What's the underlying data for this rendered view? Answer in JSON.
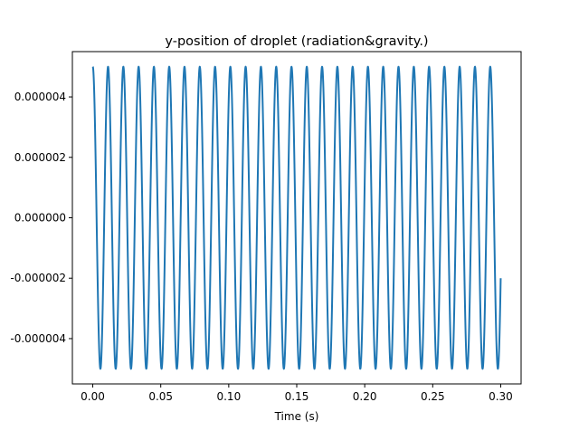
{
  "chart_data": {
    "type": "line",
    "title": "y-position of droplet (radiation&gravity.)",
    "xlabel": "Time (s)",
    "ylabel": "",
    "xlim": [
      -0.015,
      0.315
    ],
    "ylim": [
      -5.5e-06,
      5.5e-06
    ],
    "xticks": [
      0.0,
      0.05,
      0.1,
      0.15,
      0.2,
      0.25,
      0.3
    ],
    "xtick_labels": [
      "0.00",
      "0.05",
      "0.10",
      "0.15",
      "0.20",
      "0.25",
      "0.30"
    ],
    "yticks": [
      -4e-06,
      -2e-06,
      0.0,
      2e-06,
      4e-06
    ],
    "ytick_labels": [
      "-0.000004",
      "-0.000002",
      "0.000000",
      "0.000002",
      "0.000004"
    ],
    "grid": false,
    "legend": "none",
    "series": [
      {
        "color": "#1f77b4",
        "amplitude": 5e-06,
        "frequency_hz": 88.9,
        "t_start": 0.0,
        "t_end": 0.3,
        "y_start": 5e-06,
        "y_end": -2e-06
      }
    ]
  }
}
